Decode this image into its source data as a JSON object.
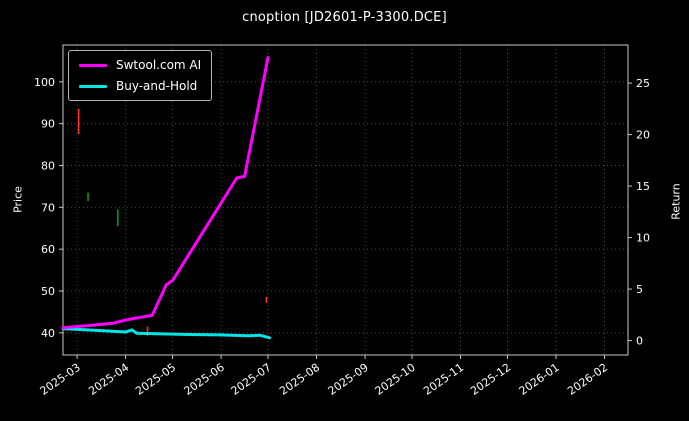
{
  "chart_data": {
    "type": "line",
    "title": "cnoption [JD2601-P-3300.DCE]",
    "ylabel_left": "Price",
    "ylabel_right": "Return",
    "background": "#000000",
    "text_color": "#ffffff",
    "grid": {
      "on": true,
      "style": "dotted",
      "color": "#484848"
    },
    "legend_position": "upper left",
    "x_unit": "days since 2025-02-20",
    "xlim": [
      0,
      361
    ],
    "price_ylim": [
      34.7,
      108.8
    ],
    "return_ylim": [
      -1.4,
      28.7
    ],
    "price_ticks": [
      40,
      50,
      60,
      70,
      80,
      90,
      100
    ],
    "return_ticks": [
      0,
      5,
      10,
      15,
      20,
      25
    ],
    "x_ticks": [
      {
        "label": "2025-03",
        "day": 9
      },
      {
        "label": "2025-04",
        "day": 40
      },
      {
        "label": "2025-05",
        "day": 70
      },
      {
        "label": "2025-06",
        "day": 101
      },
      {
        "label": "2025-07",
        "day": 131
      },
      {
        "label": "2025-08",
        "day": 162
      },
      {
        "label": "2025-09",
        "day": 193
      },
      {
        "label": "2025-10",
        "day": 223
      },
      {
        "label": "2025-11",
        "day": 254
      },
      {
        "label": "2025-12",
        "day": 284
      },
      {
        "label": "2026-01",
        "day": 315
      },
      {
        "label": "2026-02",
        "day": 346
      }
    ],
    "series": [
      {
        "name": "Swtool.com AI",
        "color": "#ff00ff",
        "width": 3,
        "points": [
          [
            0,
            41.2
          ],
          [
            15,
            41.7
          ],
          [
            32,
            42.3
          ],
          [
            42,
            43.2
          ],
          [
            57,
            44.2
          ],
          [
            66,
            51.5
          ],
          [
            70,
            52.5
          ],
          [
            111,
            77.0
          ],
          [
            116,
            77.4
          ],
          [
            131,
            105.8
          ]
        ]
      },
      {
        "name": "Buy-and-Hold",
        "color": "#00e5e5",
        "width": 3,
        "points": [
          [
            0,
            41.0
          ],
          [
            20,
            40.6
          ],
          [
            40,
            40.2
          ],
          [
            44,
            40.7
          ],
          [
            47,
            39.9
          ],
          [
            60,
            39.8
          ],
          [
            80,
            39.6
          ],
          [
            100,
            39.5
          ],
          [
            118,
            39.3
          ],
          [
            126,
            39.4
          ],
          [
            132,
            38.8
          ]
        ]
      }
    ],
    "signals": [
      {
        "color": "#ff3030",
        "day": 10,
        "price_from": 87.5,
        "price_to": 93.5
      },
      {
        "color": "#00a000",
        "day": 16,
        "price_from": 71.5,
        "price_to": 73.5
      },
      {
        "color": "#00a000",
        "day": 35,
        "price_from": 65.5,
        "price_to": 69.5
      },
      {
        "color": "#ff3030",
        "day": 54,
        "price_from": 39.3,
        "price_to": 41.5
      },
      {
        "color": "#ff3030",
        "day": 130,
        "price_from": 47.2,
        "price_to": 48.6
      }
    ]
  }
}
